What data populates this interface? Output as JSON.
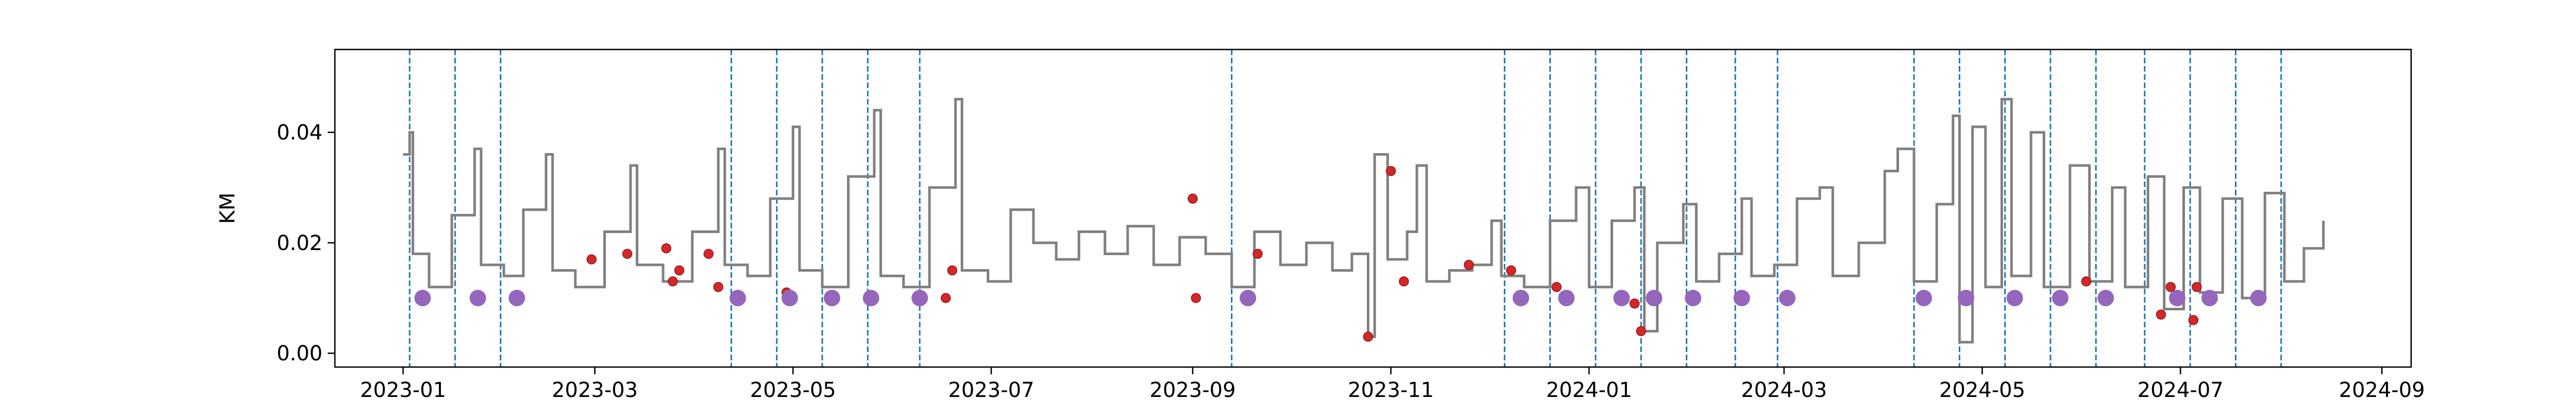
{
  "chart_data": {
    "type": "line",
    "title": "",
    "xlabel": "",
    "ylabel": "KM",
    "xlim": [
      "2022-12-11",
      "2024-09-10"
    ],
    "ylim": [
      -0.0025,
      0.055
    ],
    "grid": false,
    "x_ticks": [
      {
        "date": "2023-01-01",
        "label": "2023-01"
      },
      {
        "date": "2023-03-01",
        "label": "2023-03"
      },
      {
        "date": "2023-05-01",
        "label": "2023-05"
      },
      {
        "date": "2023-07-01",
        "label": "2023-07"
      },
      {
        "date": "2023-09-01",
        "label": "2023-09"
      },
      {
        "date": "2023-11-01",
        "label": "2023-11"
      },
      {
        "date": "2024-01-01",
        "label": "2024-01"
      },
      {
        "date": "2024-03-01",
        "label": "2024-03"
      },
      {
        "date": "2024-05-01",
        "label": "2024-05"
      },
      {
        "date": "2024-07-01",
        "label": "2024-07"
      },
      {
        "date": "2024-09-01",
        "label": "2024-09"
      }
    ],
    "y_ticks": [
      {
        "value": 0.0,
        "label": "0.00"
      },
      {
        "value": 0.02,
        "label": "0.02"
      },
      {
        "value": 0.04,
        "label": "0.04"
      }
    ],
    "series": [
      {
        "kind": "step-line",
        "color": "#808080",
        "points": [
          [
            "2023-01-01",
            0.036
          ],
          [
            "2023-01-03",
            0.04
          ],
          [
            "2023-01-04",
            0.018
          ],
          [
            "2023-01-09",
            0.012
          ],
          [
            "2023-01-16",
            0.025
          ],
          [
            "2023-01-23",
            0.037
          ],
          [
            "2023-01-25",
            0.016
          ],
          [
            "2023-02-01",
            0.014
          ],
          [
            "2023-02-07",
            0.026
          ],
          [
            "2023-02-14",
            0.036
          ],
          [
            "2023-02-16",
            0.015
          ],
          [
            "2023-02-23",
            0.012
          ],
          [
            "2023-03-04",
            0.022
          ],
          [
            "2023-03-12",
            0.034
          ],
          [
            "2023-03-14",
            0.016
          ],
          [
            "2023-03-22",
            0.013
          ],
          [
            "2023-03-31",
            0.022
          ],
          [
            "2023-04-08",
            0.037
          ],
          [
            "2023-04-10",
            0.016
          ],
          [
            "2023-04-17",
            0.014
          ],
          [
            "2023-04-24",
            0.028
          ],
          [
            "2023-05-01",
            0.041
          ],
          [
            "2023-05-03",
            0.015
          ],
          [
            "2023-05-10",
            0.012
          ],
          [
            "2023-05-18",
            0.032
          ],
          [
            "2023-05-26",
            0.044
          ],
          [
            "2023-05-28",
            0.014
          ],
          [
            "2023-06-04",
            0.012
          ],
          [
            "2023-06-12",
            0.03
          ],
          [
            "2023-06-20",
            0.046
          ],
          [
            "2023-06-22",
            0.015
          ],
          [
            "2023-06-30",
            0.013
          ],
          [
            "2023-07-07",
            0.026
          ],
          [
            "2023-07-14",
            0.02
          ],
          [
            "2023-07-21",
            0.017
          ],
          [
            "2023-07-28",
            0.022
          ],
          [
            "2023-08-05",
            0.018
          ],
          [
            "2023-08-12",
            0.023
          ],
          [
            "2023-08-20",
            0.016
          ],
          [
            "2023-08-28",
            0.021
          ],
          [
            "2023-09-05",
            0.018
          ],
          [
            "2023-09-13",
            0.012
          ],
          [
            "2023-09-20",
            0.022
          ],
          [
            "2023-09-28",
            0.016
          ],
          [
            "2023-10-06",
            0.02
          ],
          [
            "2023-10-14",
            0.015
          ],
          [
            "2023-10-20",
            0.018
          ],
          [
            "2023-10-25",
            0.003
          ],
          [
            "2023-10-27",
            0.036
          ],
          [
            "2023-10-31",
            0.017
          ],
          [
            "2023-11-06",
            0.022
          ],
          [
            "2023-11-09",
            0.034
          ],
          [
            "2023-11-12",
            0.013
          ],
          [
            "2023-11-19",
            0.015
          ],
          [
            "2023-11-26",
            0.016
          ],
          [
            "2023-12-02",
            0.024
          ],
          [
            "2023-12-05",
            0.014
          ],
          [
            "2023-12-12",
            0.012
          ],
          [
            "2023-12-20",
            0.024
          ],
          [
            "2023-12-28",
            0.03
          ],
          [
            "2024-01-01",
            0.012
          ],
          [
            "2024-01-08",
            0.024
          ],
          [
            "2024-01-15",
            0.03
          ],
          [
            "2024-01-18",
            0.004
          ],
          [
            "2024-01-22",
            0.02
          ],
          [
            "2024-01-30",
            0.027
          ],
          [
            "2024-02-03",
            0.013
          ],
          [
            "2024-02-10",
            0.018
          ],
          [
            "2024-02-17",
            0.028
          ],
          [
            "2024-02-20",
            0.014
          ],
          [
            "2024-02-27",
            0.016
          ],
          [
            "2024-03-05",
            0.028
          ],
          [
            "2024-03-12",
            0.03
          ],
          [
            "2024-03-16",
            0.014
          ],
          [
            "2024-03-24",
            0.02
          ],
          [
            "2024-04-01",
            0.033
          ],
          [
            "2024-04-05",
            0.037
          ],
          [
            "2024-04-10",
            0.013
          ],
          [
            "2024-04-17",
            0.027
          ],
          [
            "2024-04-22",
            0.043
          ],
          [
            "2024-04-24",
            0.002
          ],
          [
            "2024-04-28",
            0.041
          ],
          [
            "2024-05-02",
            0.012
          ],
          [
            "2024-05-07",
            0.046
          ],
          [
            "2024-05-10",
            0.014
          ],
          [
            "2024-05-16",
            0.04
          ],
          [
            "2024-05-20",
            0.012
          ],
          [
            "2024-05-28",
            0.034
          ],
          [
            "2024-06-03",
            0.013
          ],
          [
            "2024-06-10",
            0.03
          ],
          [
            "2024-06-14",
            0.012
          ],
          [
            "2024-06-21",
            0.032
          ],
          [
            "2024-06-26",
            0.008
          ],
          [
            "2024-07-02",
            0.03
          ],
          [
            "2024-07-07",
            0.011
          ],
          [
            "2024-07-14",
            0.028
          ],
          [
            "2024-07-20",
            0.01
          ],
          [
            "2024-07-27",
            0.029
          ],
          [
            "2024-08-02",
            0.013
          ],
          [
            "2024-08-08",
            0.019
          ],
          [
            "2024-08-14",
            0.024
          ]
        ]
      },
      {
        "kind": "scatter",
        "color": "#d62728",
        "points": [
          [
            "2023-02-28",
            0.017
          ],
          [
            "2023-03-11",
            0.018
          ],
          [
            "2023-03-23",
            0.019
          ],
          [
            "2023-03-25",
            0.013
          ],
          [
            "2023-03-27",
            0.015
          ],
          [
            "2023-04-05",
            0.018
          ],
          [
            "2023-04-08",
            0.012
          ],
          [
            "2023-04-29",
            0.011
          ],
          [
            "2023-06-17",
            0.01
          ],
          [
            "2023-06-19",
            0.015
          ],
          [
            "2023-09-01",
            0.028
          ],
          [
            "2023-09-02",
            0.01
          ],
          [
            "2023-09-21",
            0.018
          ],
          [
            "2023-10-25",
            0.003
          ],
          [
            "2023-11-01",
            0.033
          ],
          [
            "2023-11-05",
            0.013
          ],
          [
            "2023-11-25",
            0.016
          ],
          [
            "2023-12-08",
            0.015
          ],
          [
            "2023-12-22",
            0.012
          ],
          [
            "2024-01-15",
            0.009
          ],
          [
            "2024-01-17",
            0.004
          ],
          [
            "2024-06-02",
            0.013
          ],
          [
            "2024-06-25",
            0.007
          ],
          [
            "2024-06-28",
            0.012
          ],
          [
            "2024-07-05",
            0.006
          ],
          [
            "2024-07-06",
            0.012
          ]
        ]
      },
      {
        "kind": "scatter",
        "color": "#9467bd",
        "y": 0.01,
        "dates": [
          "2023-01-07",
          "2023-01-24",
          "2023-02-05",
          "2023-04-14",
          "2023-04-30",
          "2023-05-13",
          "2023-05-25",
          "2023-06-09",
          "2023-09-18",
          "2023-12-11",
          "2023-12-25",
          "2024-01-11",
          "2024-01-21",
          "2024-02-02",
          "2024-02-17",
          "2024-03-02",
          "2024-04-13",
          "2024-04-26",
          "2024-05-11",
          "2024-05-25",
          "2024-06-08",
          "2024-06-30",
          "2024-07-10",
          "2024-07-25"
        ]
      },
      {
        "kind": "vertical-lines",
        "color": "#1f77b4",
        "dates": [
          "2023-01-03",
          "2023-01-17",
          "2023-01-31",
          "2023-04-12",
          "2023-04-26",
          "2023-05-10",
          "2023-05-24",
          "2023-06-09",
          "2023-09-13",
          "2023-12-06",
          "2023-12-20",
          "2024-01-03",
          "2024-01-17",
          "2024-01-31",
          "2024-02-15",
          "2024-02-28",
          "2024-04-10",
          "2024-04-24",
          "2024-05-08",
          "2024-05-22",
          "2024-06-05",
          "2024-06-20",
          "2024-07-04",
          "2024-07-18",
          "2024-08-01"
        ]
      }
    ]
  }
}
